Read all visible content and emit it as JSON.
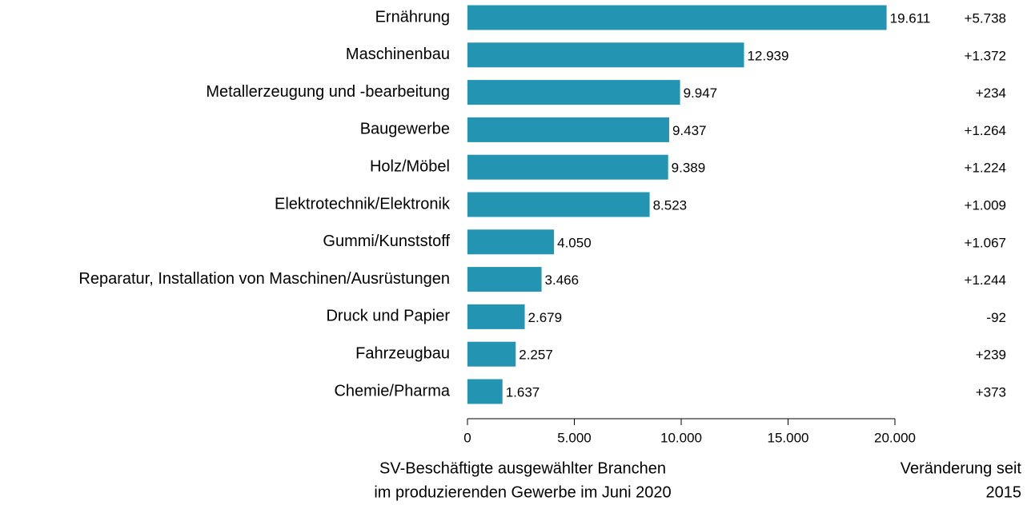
{
  "chart_data": {
    "type": "hbar",
    "orientation": "horizontal",
    "categories": [
      "Ernährung",
      "Maschinenbau",
      "Metallerzeugung und -bearbeitung",
      "Baugewerbe",
      "Holz/Möbel",
      "Elektrotechnik/Elektronik",
      "Gummi/Kunststoff",
      "Reparatur, Installation von Maschinen/Ausrüstungen",
      "Druck und Papier",
      "Fahrzeugbau",
      "Chemie/Pharma"
    ],
    "values": [
      19611,
      12939,
      9947,
      9437,
      9389,
      8523,
      4050,
      3466,
      2679,
      2257,
      1637
    ],
    "value_labels": [
      "19.611",
      "12.939",
      "9.947",
      "9.437",
      "9.389",
      "8.523",
      "4.050",
      "3.466",
      "2.679",
      "2.257",
      "1.637"
    ],
    "color": "#2394b2",
    "changes": {
      "values": [
        5738,
        1372,
        234,
        1264,
        1224,
        1009,
        1067,
        1244,
        -92,
        239,
        373
      ],
      "value_labels": [
        "+5.738",
        "+1.372",
        "+234",
        "+1.264",
        "+1.224",
        "+1.009",
        "+1.067",
        "+1.244",
        "-92",
        "+239",
        "+373"
      ]
    },
    "xlim": [
      0,
      20000
    ],
    "xticks": [
      0,
      {
        "value": 5000,
        "label": "5.000"
      },
      {
        "value": 10000,
        "label": "10.000"
      },
      {
        "value": 15000,
        "label": "15.000"
      },
      {
        "value": 20000,
        "label": "20.000"
      }
    ],
    "xlabel": [
      "SV-Beschäftigte ausgewählter Branchen",
      "im produzierenden Gewerbe im Juni 2020"
    ],
    "change_label": [
      "Veränderung seit",
      "2015"
    ]
  }
}
